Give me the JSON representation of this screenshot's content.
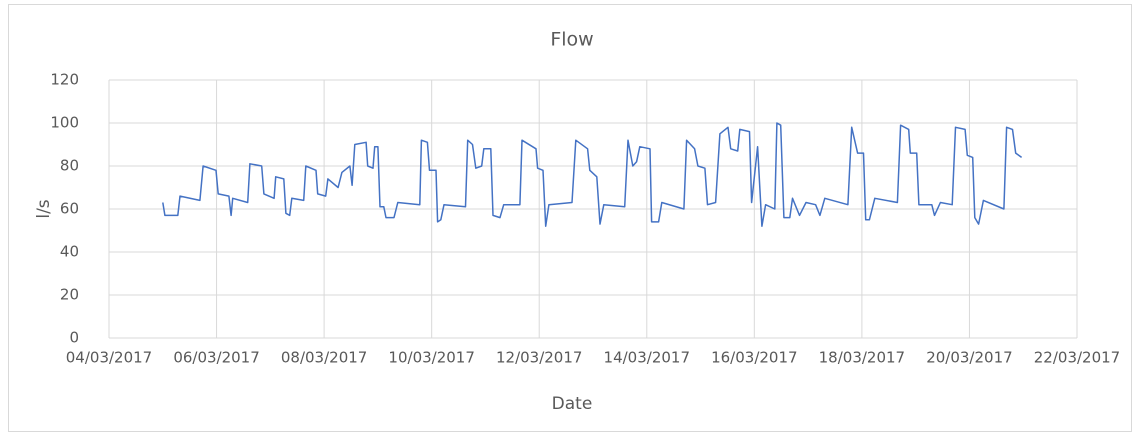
{
  "chart_data": {
    "type": "line",
    "title": "Flow",
    "x_label": "Date",
    "y_label": "l/s",
    "xlim": [
      4,
      22
    ],
    "xticks": [
      {
        "value": 4,
        "label": "04/03/2017"
      },
      {
        "value": 6,
        "label": "06/03/2017"
      },
      {
        "value": 8,
        "label": "08/03/2017"
      },
      {
        "value": 10,
        "label": "10/03/2017"
      },
      {
        "value": 12,
        "label": "12/03/2017"
      },
      {
        "value": 14,
        "label": "14/03/2017"
      },
      {
        "value": 16,
        "label": "16/03/2017"
      },
      {
        "value": 18,
        "label": "18/03/2017"
      },
      {
        "value": 20,
        "label": "20/03/2017"
      },
      {
        "value": 22,
        "label": "22/03/2017"
      }
    ],
    "ylim": [
      0,
      120
    ],
    "yticks": [
      0,
      20,
      40,
      60,
      80,
      100,
      120
    ],
    "grid": true,
    "x": [
      5.0,
      5.04,
      5.28,
      5.32,
      5.69,
      5.75,
      5.99,
      6.03,
      6.23,
      6.27,
      6.3,
      6.58,
      6.62,
      6.84,
      6.88,
      7.07,
      7.1,
      7.25,
      7.29,
      7.36,
      7.4,
      7.62,
      7.66,
      7.85,
      7.88,
      8.03,
      8.07,
      8.26,
      8.33,
      8.48,
      8.52,
      8.57,
      8.78,
      8.81,
      8.91,
      8.94,
      9.0,
      9.04,
      9.11,
      9.15,
      9.3,
      9.37,
      9.78,
      9.81,
      9.92,
      9.96,
      10.08,
      10.11,
      10.17,
      10.23,
      10.63,
      10.67,
      10.76,
      10.82,
      10.93,
      10.97,
      11.1,
      11.14,
      11.27,
      11.34,
      11.64,
      11.68,
      11.94,
      11.97,
      12.07,
      12.12,
      12.18,
      12.61,
      12.68,
      12.9,
      12.94,
      13.07,
      13.13,
      13.2,
      13.59,
      13.65,
      13.74,
      13.81,
      13.87,
      14.06,
      14.09,
      14.22,
      14.28,
      14.69,
      14.74,
      14.89,
      14.95,
      15.08,
      15.13,
      15.28,
      15.36,
      15.51,
      15.56,
      15.69,
      15.73,
      15.91,
      15.95,
      16.06,
      16.14,
      16.21,
      16.38,
      16.42,
      16.49,
      16.55,
      16.66,
      16.71,
      16.84,
      16.96,
      17.14,
      17.22,
      17.31,
      17.74,
      17.81,
      17.92,
      18.03,
      18.07,
      18.14,
      18.24,
      18.66,
      18.72,
      18.87,
      18.9,
      19.02,
      19.06,
      19.3,
      19.35,
      19.46,
      19.68,
      19.74,
      19.92,
      19.96,
      20.06,
      20.1,
      20.17,
      20.26,
      20.64,
      20.69,
      20.8,
      20.86,
      20.97
    ],
    "series": [
      {
        "name": "Flow",
        "color": "#4472c4",
        "values": [
          63,
          57,
          57,
          66,
          64,
          80,
          78,
          67,
          66,
          57,
          65,
          63,
          81,
          80,
          67,
          65,
          75,
          74,
          58,
          57,
          65,
          64,
          80,
          78,
          67,
          66,
          74,
          70,
          77,
          80,
          71,
          90,
          91,
          80,
          79,
          89,
          89,
          61,
          61,
          56,
          56,
          63,
          62,
          92,
          91,
          78,
          78,
          54,
          55,
          62,
          61,
          92,
          90,
          79,
          80,
          88,
          88,
          57,
          56,
          62,
          62,
          92,
          88,
          79,
          78,
          52,
          62,
          63,
          92,
          88,
          78,
          75,
          53,
          62,
          61,
          92,
          80,
          82,
          89,
          88,
          54,
          54,
          63,
          60,
          92,
          88,
          80,
          79,
          62,
          63,
          95,
          98,
          88,
          87,
          97,
          96,
          63,
          89,
          52,
          62,
          60,
          100,
          99,
          56,
          56,
          65,
          57,
          63,
          62,
          57,
          65,
          62,
          98,
          86,
          86,
          55,
          55,
          65,
          63,
          99,
          97,
          86,
          86,
          62,
          62,
          57,
          63,
          62,
          98,
          97,
          85,
          84,
          56,
          53,
          64,
          60,
          98,
          97,
          86,
          84
        ]
      }
    ]
  }
}
